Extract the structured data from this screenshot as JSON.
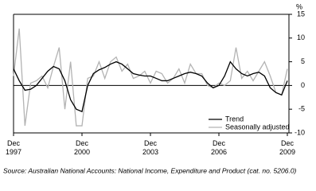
{
  "chart_data": {
    "type": "line",
    "y_label": "%",
    "source": "Source: Australian National Accounts: National Income, Expenditure and Product (cat. no. 5206.0)",
    "categories": [
      "Dec 1997",
      null,
      null,
      null,
      null,
      null,
      null,
      null,
      null,
      null,
      null,
      null,
      "Dec 2000",
      null,
      null,
      null,
      null,
      null,
      null,
      null,
      null,
      null,
      null,
      null,
      "Dec 2003",
      null,
      null,
      null,
      null,
      null,
      null,
      null,
      null,
      null,
      null,
      null,
      "Dec 2006",
      null,
      null,
      null,
      null,
      null,
      null,
      null,
      null,
      null,
      null,
      null,
      "Dec 2009"
    ],
    "series": [
      {
        "name": "Trend",
        "color": "#000000",
        "values": [
          3.5,
          1,
          -1,
          -0.8,
          0,
          1.5,
          3,
          4,
          3.5,
          1,
          -3,
          -5,
          -5.5,
          0,
          2.5,
          3.3,
          3.8,
          4.5,
          5,
          4.5,
          3.5,
          2.5,
          2.2,
          2,
          2,
          1.5,
          1,
          1,
          1.5,
          2,
          2.5,
          2.8,
          2.5,
          2,
          0.5,
          -0.5,
          0,
          2,
          5,
          3.5,
          2.5,
          2,
          2.5,
          2.8,
          2,
          -0.5,
          -1.5,
          -2,
          1
        ]
      },
      {
        "name": "Seasonally adjusted",
        "color": "#b3b3b3",
        "values": [
          2,
          12,
          -8.5,
          0.5,
          1,
          2,
          -0.5,
          4,
          8,
          -5,
          5,
          -8.5,
          -8.5,
          1.5,
          2,
          5,
          1.5,
          5,
          6,
          3,
          4.5,
          1.5,
          2,
          3,
          0.5,
          3,
          2.5,
          0.5,
          1.5,
          3.5,
          0.5,
          4.5,
          2.5,
          2.5,
          0,
          -0.5,
          0.5,
          0,
          1,
          8,
          1.5,
          3,
          1,
          3,
          5,
          2,
          -1.5,
          -2,
          3.5
        ]
      }
    ],
    "ylim": [
      -10,
      15
    ],
    "yticks": [
      15,
      10,
      5,
      0,
      -5,
      -10
    ]
  }
}
